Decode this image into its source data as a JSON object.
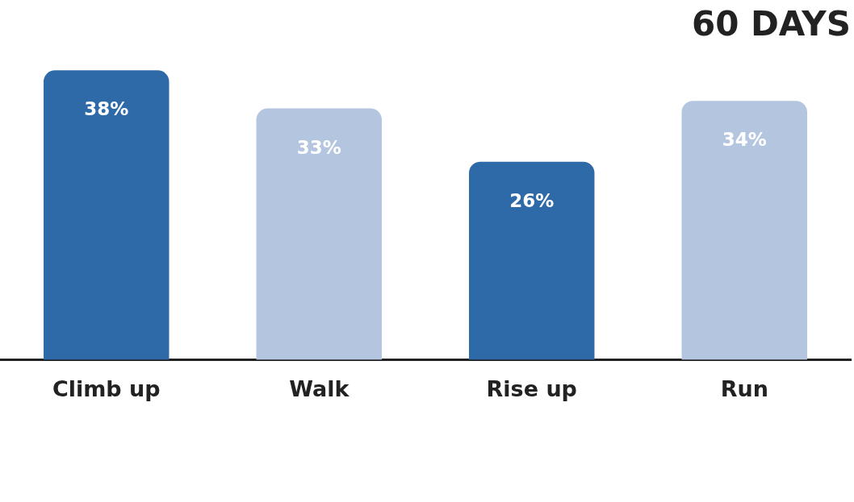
{
  "chart_data": {
    "type": "bar",
    "title": "60 DAYS",
    "categories": [
      "Climb up",
      "Walk",
      "Rise up",
      "Run"
    ],
    "values": [
      38,
      33,
      26,
      34
    ],
    "colors": [
      "#2f6aa8",
      "#b4c6df",
      "#2f6aa8",
      "#b4c6df"
    ],
    "value_labels": [
      "38%",
      "33%",
      "26%",
      "34%"
    ],
    "grid": false,
    "legend": false
  }
}
